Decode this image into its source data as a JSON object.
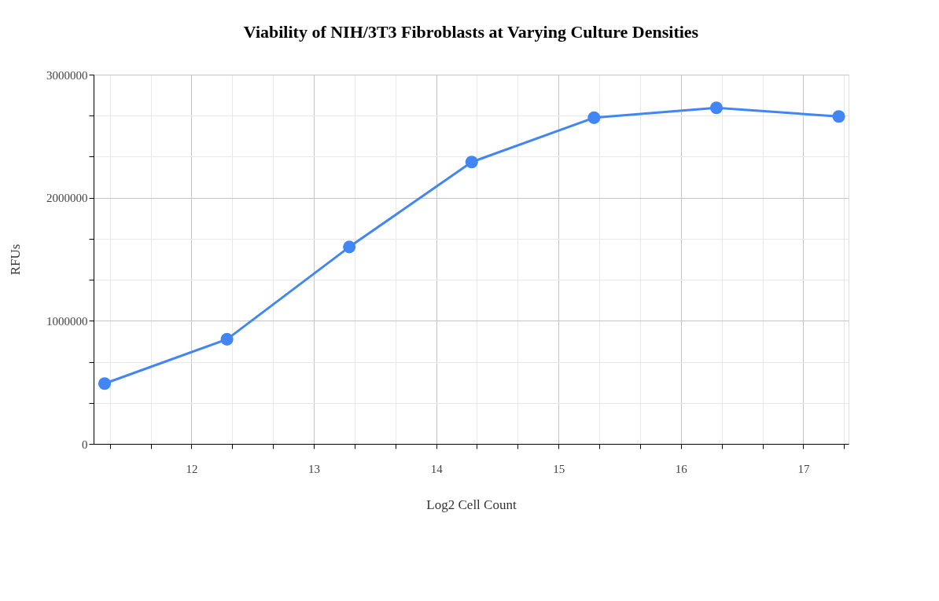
{
  "chart_data": {
    "type": "line",
    "title": "Viability of NIH/3T3 Fibroblasts at Varying Culture Densities",
    "xlabel": "Log2 Cell Count",
    "ylabel": "RFUs",
    "x": [
      11.29,
      12.29,
      13.29,
      14.29,
      15.29,
      16.29,
      17.29
    ],
    "series": [
      {
        "color": "#4285f4",
        "values": [
          490000,
          850000,
          1600000,
          2290000,
          2650000,
          2730000,
          2660000
        ]
      }
    ],
    "xlim": [
      11.2,
      17.37
    ],
    "xticks": [
      {
        "value": 11.333,
        "label": null
      },
      {
        "value": 11.667,
        "label": null
      },
      12,
      {
        "value": 12.333,
        "label": null
      },
      {
        "value": 12.667,
        "label": null
      },
      13,
      {
        "value": 13.333,
        "label": null
      },
      {
        "value": 13.667,
        "label": null
      },
      14,
      {
        "value": 14.333,
        "label": null
      },
      {
        "value": 14.667,
        "label": null
      },
      15,
      {
        "value": 15.333,
        "label": null
      },
      {
        "value": 15.667,
        "label": null
      },
      16,
      {
        "value": 16.333,
        "label": null
      },
      {
        "value": 16.667,
        "label": null
      },
      17,
      {
        "value": 17.333,
        "label": null
      }
    ],
    "ylim": [
      0,
      3000000
    ],
    "yticks": [
      0,
      {
        "value": 333333,
        "label": null
      },
      {
        "value": 666667,
        "label": null
      },
      1000000,
      {
        "value": 1333333,
        "label": null
      },
      {
        "value": 1666667,
        "label": null
      },
      2000000,
      {
        "value": 2333333,
        "label": null
      },
      {
        "value": 2666667,
        "label": null
      },
      3000000
    ],
    "grid": true,
    "marker": "circle",
    "line_style": "solid"
  }
}
